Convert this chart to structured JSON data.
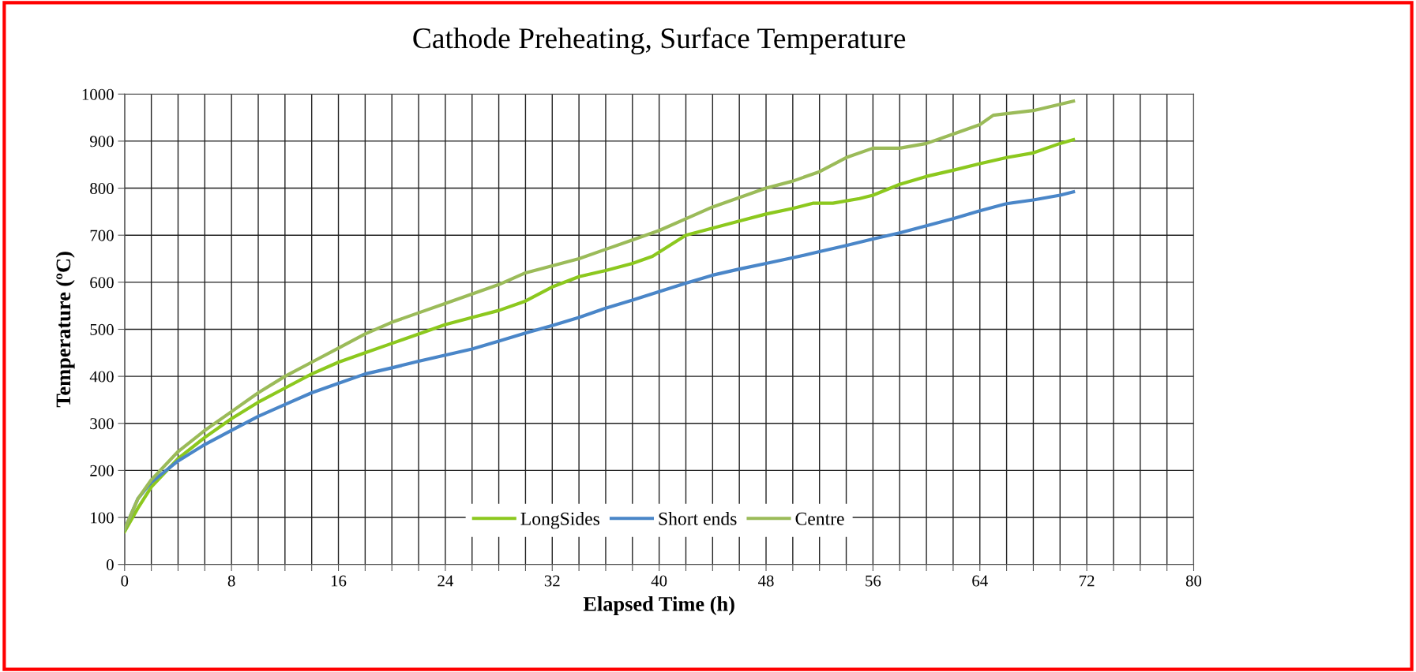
{
  "chart_data": {
    "type": "line",
    "title": "Cathode Preheating, Surface Temperature",
    "xlabel": "Elapsed Time (h)",
    "ylabel": "Temperature (ºC)",
    "xlim": [
      0,
      80
    ],
    "ylim": [
      0,
      1000
    ],
    "xticks": [
      0,
      {
        "value": 2,
        "label": null
      },
      {
        "value": 4,
        "label": null
      },
      {
        "value": 6,
        "label": null
      },
      8,
      {
        "value": 10,
        "label": null
      },
      {
        "value": 12,
        "label": null
      },
      {
        "value": 14,
        "label": null
      },
      16,
      {
        "value": 18,
        "label": null
      },
      {
        "value": 20,
        "label": null
      },
      {
        "value": 22,
        "label": null
      },
      24,
      {
        "value": 26,
        "label": null
      },
      {
        "value": 28,
        "label": null
      },
      {
        "value": 30,
        "label": null
      },
      32,
      {
        "value": 34,
        "label": null
      },
      {
        "value": 36,
        "label": null
      },
      {
        "value": 38,
        "label": null
      },
      40,
      {
        "value": 42,
        "label": null
      },
      {
        "value": 44,
        "label": null
      },
      {
        "value": 46,
        "label": null
      },
      48,
      {
        "value": 50,
        "label": null
      },
      {
        "value": 52,
        "label": null
      },
      {
        "value": 54,
        "label": null
      },
      56,
      {
        "value": 58,
        "label": null
      },
      {
        "value": 60,
        "label": null
      },
      {
        "value": 62,
        "label": null
      },
      64,
      {
        "value": 66,
        "label": null
      },
      {
        "value": 68,
        "label": null
      },
      {
        "value": 70,
        "label": null
      },
      72,
      {
        "value": 74,
        "label": null
      },
      {
        "value": 76,
        "label": null
      },
      {
        "value": 78,
        "label": null
      },
      80
    ],
    "yticks": [
      0,
      100,
      200,
      300,
      400,
      500,
      600,
      700,
      800,
      900,
      1000
    ],
    "grid": true,
    "legend": "bottom",
    "marker": "none",
    "line_style": "solid",
    "series": [
      {
        "name": "LongSides",
        "color": "#8cc81e",
        "x": [
          0,
          1,
          2,
          4,
          6,
          8,
          10,
          12,
          14,
          16,
          18,
          20,
          22,
          24,
          26,
          28,
          30,
          32,
          34,
          36,
          38,
          39.5,
          42,
          44,
          46,
          48,
          50,
          51.5,
          53,
          55,
          56,
          58,
          60,
          62,
          64,
          66,
          68,
          70,
          71
        ],
        "values": [
          70,
          120,
          165,
          225,
          270,
          310,
          345,
          375,
          405,
          430,
          450,
          470,
          490,
          510,
          525,
          540,
          560,
          590,
          612,
          625,
          640,
          655,
          700,
          715,
          730,
          745,
          757,
          768,
          768,
          778,
          785,
          808,
          825,
          838,
          852,
          865,
          875,
          895,
          903
        ]
      },
      {
        "name": "Short ends",
        "color": "#4a86c8",
        "x": [
          0,
          1,
          2,
          4,
          6,
          8,
          10,
          12,
          14,
          16,
          18,
          20,
          22,
          24,
          26,
          28,
          30,
          32,
          34,
          36,
          38,
          40,
          42,
          44,
          46,
          48,
          50,
          52,
          54,
          56,
          58,
          60,
          62,
          64,
          66,
          68,
          70,
          71
        ],
        "values": [
          75,
          140,
          175,
          220,
          255,
          285,
          315,
          340,
          365,
          385,
          405,
          418,
          432,
          445,
          458,
          475,
          492,
          508,
          525,
          545,
          562,
          580,
          598,
          615,
          628,
          640,
          652,
          665,
          678,
          692,
          705,
          720,
          735,
          752,
          767,
          775,
          785,
          792
        ]
      },
      {
        "name": "Centre",
        "color": "#9bbb59",
        "x": [
          0,
          1,
          2,
          4,
          6,
          8,
          10,
          12,
          14,
          16,
          18,
          20,
          22,
          24,
          26,
          28,
          30,
          32,
          34,
          36,
          38,
          40,
          42,
          44,
          46,
          48,
          50,
          52,
          54,
          56,
          58,
          60,
          62,
          64,
          65,
          68,
          71
        ],
        "values": [
          75,
          140,
          180,
          240,
          285,
          325,
          365,
          400,
          430,
          460,
          490,
          515,
          535,
          555,
          575,
          595,
          620,
          635,
          650,
          670,
          690,
          710,
          735,
          760,
          780,
          800,
          815,
          835,
          865,
          885,
          885,
          895,
          915,
          935,
          955,
          965,
          985
        ]
      }
    ]
  }
}
